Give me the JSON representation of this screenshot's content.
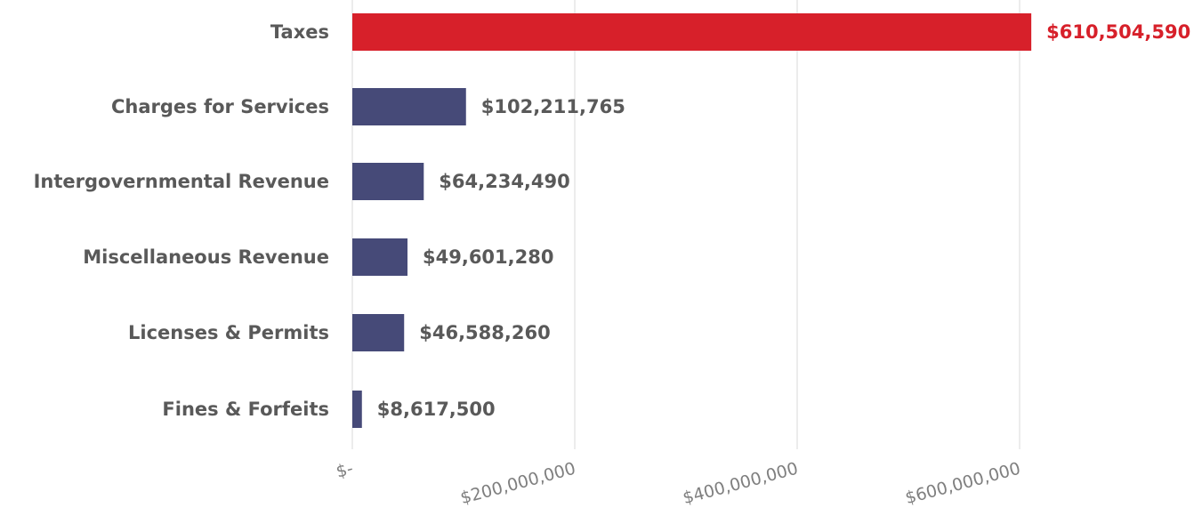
{
  "chart_data": {
    "type": "bar",
    "orientation": "horizontal",
    "title": "",
    "xlabel": "",
    "ylabel": "",
    "categories": [
      "Taxes",
      "Charges for Services",
      "Intergovernmental Revenue",
      "Miscellaneous Revenue",
      "Licenses & Permits",
      "Fines & Forfeits"
    ],
    "values": [
      610504590,
      102211765,
      64234490,
      49601280,
      46588260,
      8617500
    ],
    "value_labels": [
      "$610,504,590",
      "$102,211,765",
      "$64,234,490",
      "$49,601,280",
      "$46,588,260",
      "$8,617,500"
    ],
    "highlight_index": 0,
    "xlim": [
      0,
      760000000
    ],
    "ticks": [
      0,
      200000000,
      400000000,
      600000000
    ],
    "tick_labels": [
      "$-",
      "$200,000,000",
      "$400,000,000",
      "$600,000,000"
    ],
    "grid": "vertical",
    "legend": "none",
    "colors": {
      "bar": "#464a78",
      "highlight_bar": "#d7202a",
      "highlight_label": "#d7202a",
      "category_text": "#595959",
      "value_text": "#595959",
      "tick_text": "#7f7f7f",
      "grid": "#d9d9d9"
    }
  }
}
